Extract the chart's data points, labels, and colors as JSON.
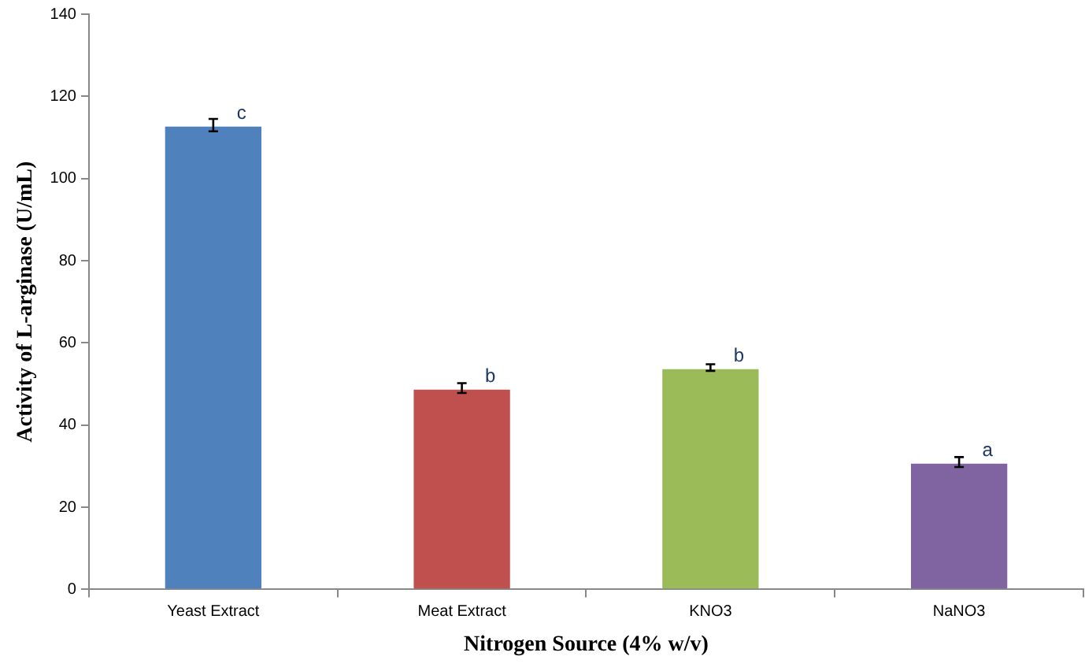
{
  "chart_data": {
    "type": "bar",
    "xlabel": "Nitrogen Source (4% w/v)",
    "ylabel": "Activity of L-arginase (U/mL)",
    "categories": [
      "Yeast Extract",
      "Meat Extract",
      "KNO3",
      "NaNO3"
    ],
    "values": [
      113,
      49,
      54,
      31
    ],
    "colors": [
      "#4f81bd",
      "#c0504d",
      "#9bbb59",
      "#8064a2"
    ],
    "errors": [
      1.5,
      1.2,
      0.8,
      1.2
    ],
    "ylim": [
      0,
      140
    ],
    "yticks": [
      0,
      20,
      40,
      60,
      80,
      100,
      120,
      140
    ],
    "grid": false,
    "legend": false,
    "annotations": [
      {
        "text": "c",
        "x": "Yeast Extract",
        "y": 113
      },
      {
        "text": "b",
        "x": "Meat Extract",
        "y": 49
      },
      {
        "text": "b",
        "x": "KNO3",
        "y": 54
      },
      {
        "text": "a",
        "x": "NaNO3",
        "y": 31
      }
    ]
  }
}
